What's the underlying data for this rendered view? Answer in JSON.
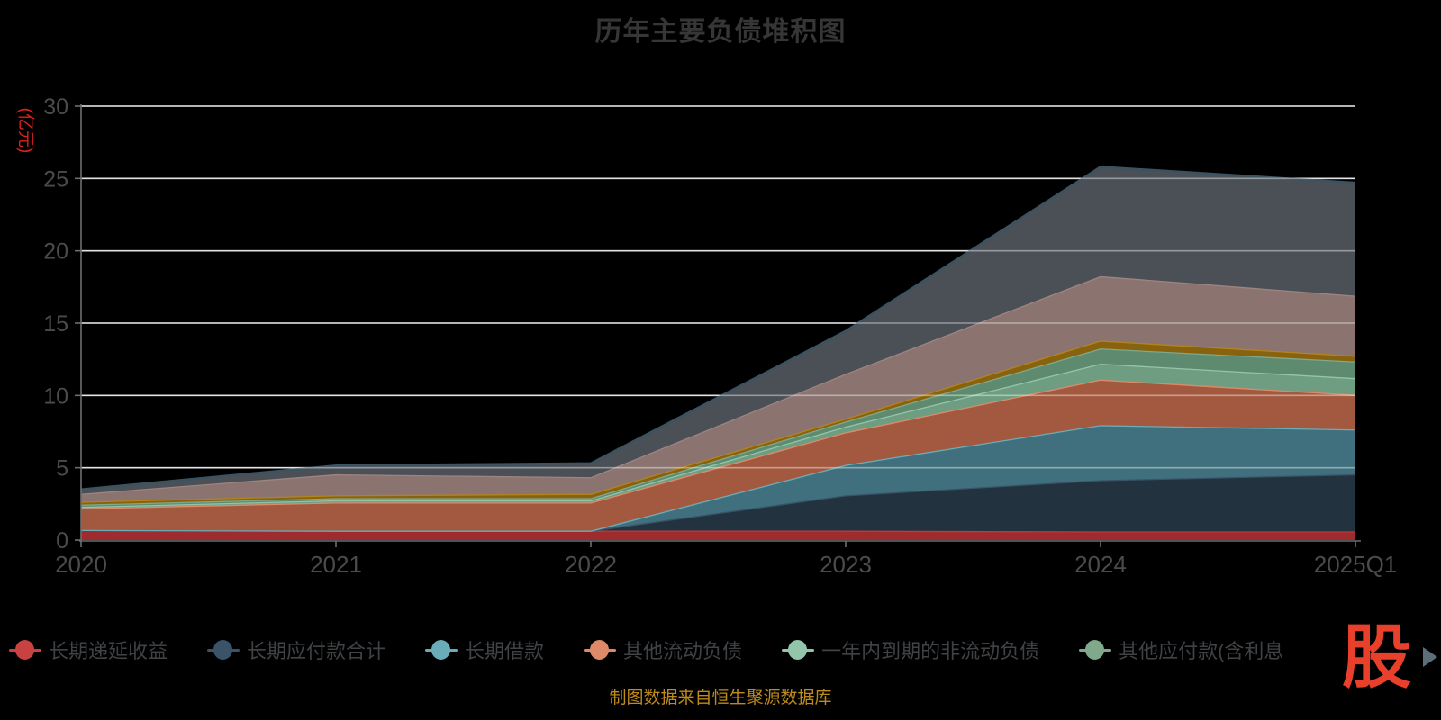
{
  "title": {
    "text": "历年主要负债堆积图",
    "color": "#363636"
  },
  "y_axis": {
    "name": "(亿元)",
    "name_color": "#e0201e",
    "ticks": [
      0,
      5,
      10,
      15,
      20,
      25,
      30
    ],
    "max": 30
  },
  "x_axis": {
    "categories": [
      "2020",
      "2021",
      "2022",
      "2023",
      "2024",
      "2025Q1"
    ]
  },
  "legend": {
    "items": [
      {
        "label": "长期递延收益",
        "color": "#c94141"
      },
      {
        "label": "长期应付款合计",
        "color": "#3a5368"
      },
      {
        "label": "长期借款",
        "color": "#6aacb8"
      },
      {
        "label": "其他流动负债",
        "color": "#de8a68"
      },
      {
        "label": "一年内到期的非流动负债",
        "color": "#93c5ab"
      },
      {
        "label": "其他应付款(含利息",
        "color": "#80a88a"
      }
    ]
  },
  "watermark": {
    "text": "股",
    "color": "#e8402a"
  },
  "caption": {
    "text": "制图数据来自恒生聚源数据库",
    "color": "#bf8a1c"
  },
  "colors": {
    "background": "#000000",
    "grid_line": "#cfcfcf",
    "grid_overlay": "rgba(255,255,255,0.42)",
    "axis_line": "#6e6e6e",
    "axis_label": "#4b4b4b",
    "legend_text": "#3f4346",
    "scroll_arrow": "#5b6e7a"
  },
  "chart_data": {
    "type": "area",
    "stacked": true,
    "title": "历年主要负债堆积图",
    "ylabel": "(亿元)",
    "ylim": [
      0,
      30
    ],
    "grid": true,
    "legend_position": "bottom",
    "x": [
      "2020",
      "2021",
      "2022",
      "2023",
      "2024",
      "2025Q1"
    ],
    "series": [
      {
        "name": "长期递延收益",
        "legend_visible": true,
        "line_color": "#c0393b",
        "fill_color": "#9e2b2d",
        "values": [
          0.7,
          0.65,
          0.65,
          0.65,
          0.6,
          0.6
        ]
      },
      {
        "name": "长期应付款合计",
        "legend_visible": true,
        "line_color": "#3a5368",
        "fill_color": "#22333f",
        "values": [
          0,
          0,
          0,
          2.45,
          3.55,
          3.95
        ]
      },
      {
        "name": "长期借款",
        "legend_visible": true,
        "line_color": "#6aacb8",
        "fill_color": "#40707d",
        "values": [
          0,
          0,
          0,
          2.1,
          3.8,
          3.1
        ]
      },
      {
        "name": "其他流动负债",
        "legend_visible": true,
        "line_color": "#de8a68",
        "fill_color": "#a2593f",
        "values": [
          1.5,
          1.95,
          1.95,
          2.25,
          3.15,
          2.4
        ]
      },
      {
        "name": "一年内到期的非流动负债",
        "legend_visible": true,
        "line_color": "#93c5ab",
        "fill_color": "#6f9d82",
        "values": [
          0.1,
          0.15,
          0.15,
          0.4,
          1.1,
          1.15
        ]
      },
      {
        "name": "其他应付款(含利息",
        "legend_visible": true,
        "line_color": "#80a88a",
        "fill_color": "#5e8a6f",
        "values": [
          0.15,
          0.15,
          0.15,
          0.35,
          1.05,
          1.15
        ]
      },
      {
        "name": "",
        "legend_visible": false,
        "line_color": "#b5831c",
        "fill_color": "#87620f",
        "values": [
          0.2,
          0.2,
          0.3,
          0.2,
          0.55,
          0.4
        ]
      },
      {
        "name": "",
        "legend_visible": false,
        "line_color": "#9c8480",
        "fill_color": "#8b7470",
        "values": [
          0.55,
          1.45,
          1.15,
          3.1,
          4.45,
          4.15
        ]
      },
      {
        "name": "",
        "legend_visible": false,
        "line_color": "#3b5260",
        "fill_color": "#4b5057",
        "values": [
          0.3,
          0.6,
          0.95,
          2.95,
          7.55,
          7.8
        ]
      }
    ],
    "totals": [
      3.5,
      5.15,
      5.3,
      14.45,
      25.8,
      24.7
    ]
  }
}
